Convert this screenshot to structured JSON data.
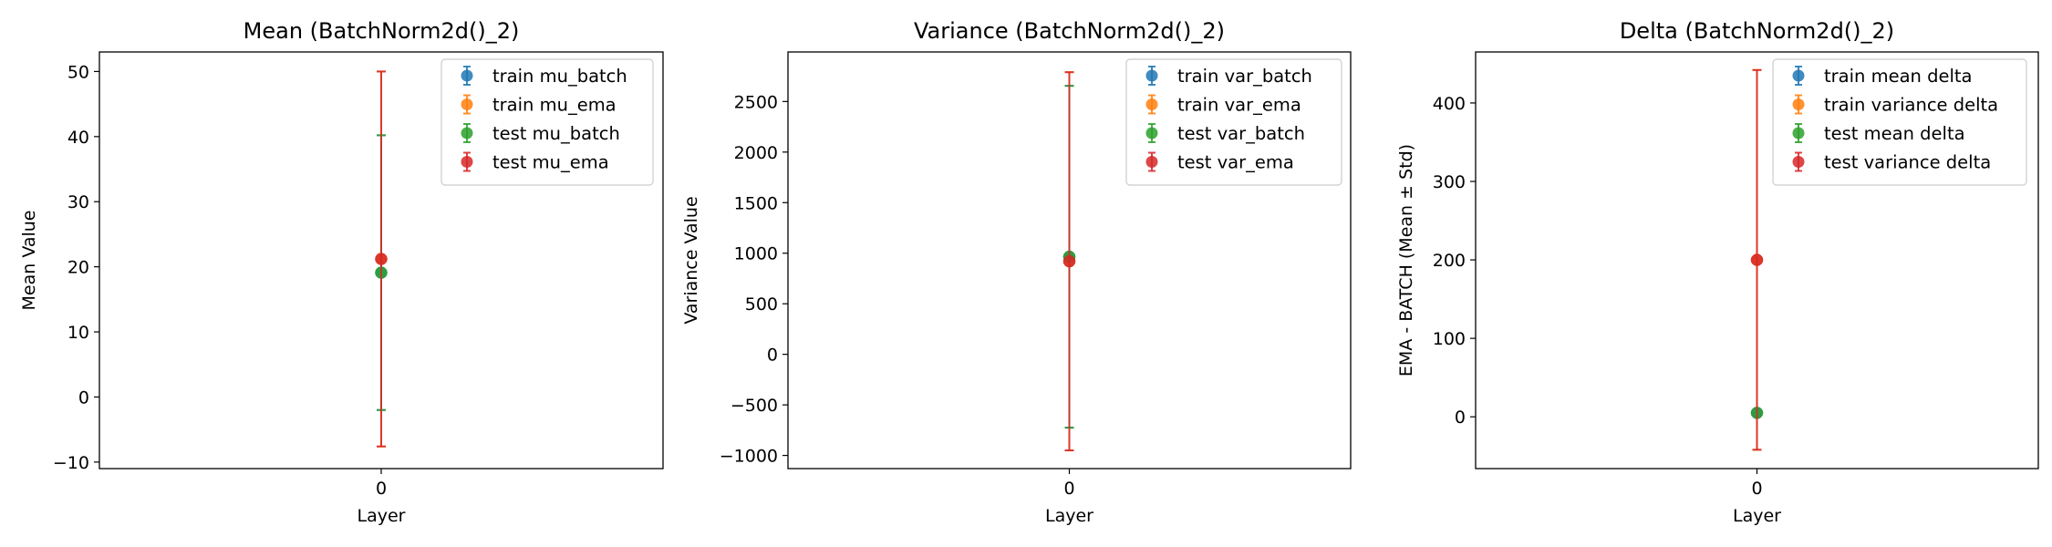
{
  "chart_data": [
    {
      "type": "scatter",
      "title": "Mean (BatchNorm2d()_2)",
      "xlabel": "Layer",
      "ylabel": "Mean Value",
      "x_categories": [
        "0"
      ],
      "ylim": [
        -11,
        53
      ],
      "yticks": [
        -10,
        0,
        10,
        20,
        30,
        40,
        50
      ],
      "ytick_labels": [
        "−10",
        "0",
        "10",
        "20",
        "30",
        "40",
        "50"
      ],
      "legend_position": "upper right",
      "grid": false,
      "series": [
        {
          "name": "train mu_batch",
          "color": "#1f77b4",
          "x": 0,
          "y": 19.1,
          "err": 21.1
        },
        {
          "name": "train mu_ema",
          "color": "#ff7f0e",
          "x": 0,
          "y": 21.2,
          "err": 28.8
        },
        {
          "name": "test mu_batch",
          "color": "#2ca02c",
          "x": 0,
          "y": 19.1,
          "err": 21.1
        },
        {
          "name": "test mu_ema",
          "color": "#d62728",
          "x": 0,
          "y": 21.2,
          "err": 28.8
        }
      ]
    },
    {
      "type": "scatter",
      "title": "Variance (BatchNorm2d()_2)",
      "xlabel": "Layer",
      "ylabel": "Variance Value",
      "x_categories": [
        "0"
      ],
      "ylim": [
        -1130,
        2990
      ],
      "yticks": [
        -1000,
        -500,
        0,
        500,
        1000,
        1500,
        2000,
        2500
      ],
      "ytick_labels": [
        "−1000",
        "−500",
        "0",
        "500",
        "1000",
        "1500",
        "2000",
        "2500"
      ],
      "legend_position": "upper right",
      "grid": false,
      "series": [
        {
          "name": "train var_batch",
          "color": "#1f77b4",
          "x": 0,
          "y": 965,
          "err": 1690
        },
        {
          "name": "train var_ema",
          "color": "#ff7f0e",
          "x": 0,
          "y": 920,
          "err": 1870
        },
        {
          "name": "test var_batch",
          "color": "#2ca02c",
          "x": 0,
          "y": 965,
          "err": 1690
        },
        {
          "name": "test var_ema",
          "color": "#d62728",
          "x": 0,
          "y": 920,
          "err": 1870
        }
      ]
    },
    {
      "type": "scatter",
      "title": "Delta (BatchNorm2d()_2)",
      "xlabel": "Layer",
      "ylabel": "EMA - BATCH (Mean ± Std)",
      "x_categories": [
        "0"
      ],
      "ylim": [
        -66,
        465
      ],
      "yticks": [
        0,
        100,
        200,
        300,
        400
      ],
      "ytick_labels": [
        "0",
        "100",
        "200",
        "300",
        "400"
      ],
      "legend_position": "upper right",
      "grid": false,
      "series": [
        {
          "name": "train mean delta",
          "color": "#1f77b4",
          "x": 0,
          "y": 5,
          "err": 0
        },
        {
          "name": "train variance delta",
          "color": "#ff7f0e",
          "x": 0,
          "y": 200,
          "err": 242
        },
        {
          "name": "test mean delta",
          "color": "#2ca02c",
          "x": 0,
          "y": 5,
          "err": 0
        },
        {
          "name": "test variance delta",
          "color": "#d62728",
          "x": 0,
          "y": 200,
          "err": 242
        }
      ]
    }
  ]
}
